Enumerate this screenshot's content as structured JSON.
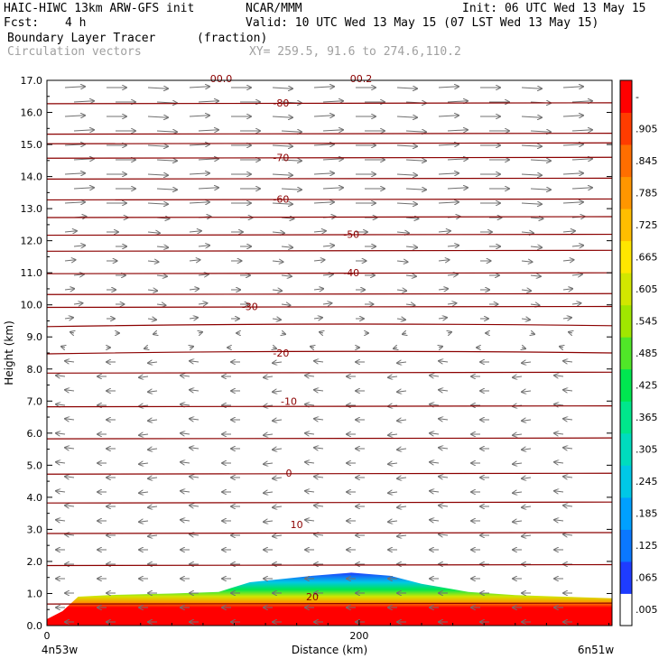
{
  "header": {
    "model": "HAIC-HIWC 13km ARW-GFS init",
    "org": "NCAR/MMM",
    "init": "Init: 06 UTC Wed 13 May 15",
    "fcst_label": "Fcst:",
    "fcst_value": "4 h",
    "valid": "Valid: 10 UTC Wed 13 May 15 (07 LST Wed 13 May 15)",
    "field": "Boundary Layer Tracer",
    "units": "(fraction)",
    "overlay": "Circulation vectors",
    "xy": "XY= 259.5, 91.6 to 274.6,110.2"
  },
  "chart_data": {
    "type": "heatmap",
    "ylabel": "Height (km)",
    "xlabel": "Distance (km)",
    "ylim": [
      0,
      17
    ],
    "yticks": [
      "0.0",
      "1.0",
      "2.0",
      "3.0",
      "4.0",
      "5.0",
      "6.0",
      "7.0",
      "8.0",
      "9.0",
      "10.0",
      "11.0",
      "12.0",
      "13.0",
      "14.0",
      "15.0",
      "16.0",
      "17.0"
    ],
    "xlim": [
      0,
      362
    ],
    "xticks": [
      {
        "value": 0,
        "label": "0"
      },
      {
        "value": 200,
        "label": "200"
      }
    ],
    "endpoints": {
      "left": "4n53w",
      "right": "6n51w"
    },
    "colorbar": {
      "labels": [
        ".005",
        ".065",
        ".125",
        ".185",
        ".245",
        ".305",
        ".365",
        ".425",
        ".485",
        ".545",
        ".605",
        ".665",
        ".725",
        ".785",
        ".845",
        ".905",
        "-"
      ],
      "colors": [
        "#ffffff",
        "#1e3cff",
        "#0a78ff",
        "#00a0ff",
        "#00c8e6",
        "#00dcbe",
        "#00e68c",
        "#00e650",
        "#50e628",
        "#a0e600",
        "#d2e600",
        "#ffe600",
        "#ffbe00",
        "#ff9600",
        "#ff6e00",
        "#ff3c00",
        "#ff0000"
      ]
    },
    "tracer_top_km": [
      [
        0,
        0.2
      ],
      [
        10,
        0.45
      ],
      [
        20,
        0.9
      ],
      [
        40,
        0.95
      ],
      [
        80,
        1.0
      ],
      [
        110,
        1.05
      ],
      [
        130,
        1.35
      ],
      [
        150,
        1.45
      ],
      [
        170,
        1.55
      ],
      [
        195,
        1.65
      ],
      [
        220,
        1.55
      ],
      [
        240,
        1.3
      ],
      [
        270,
        1.05
      ],
      [
        300,
        0.95
      ],
      [
        330,
        0.9
      ],
      [
        362,
        0.85
      ]
    ],
    "temperature_contours_C": [
      {
        "label": "0",
        "km": 4.75,
        "label_x": 155
      },
      {
        "label": "-10",
        "km": 7.0,
        "label_x": 155
      },
      {
        "label": "-20",
        "km": 8.5,
        "label_x": 150
      },
      {
        "label": "-30",
        "km": 9.95,
        "label_x": 130
      },
      {
        "label": "-40",
        "km": 11.0,
        "label_x": 195
      },
      {
        "label": "-50",
        "km": 12.2,
        "label_x": 195
      },
      {
        "label": "-60",
        "km": 13.3,
        "label_x": 150
      },
      {
        "label": "-70",
        "km": 14.6,
        "label_x": 150
      },
      {
        "label": "-80",
        "km": 16.3,
        "label_x": 150
      },
      {
        "label": "10",
        "km": 3.15,
        "label_x": 160
      },
      {
        "label": "20",
        "km": 0.9,
        "label_x": 170
      }
    ],
    "top_labels": [
      "00.0",
      "00.2"
    ]
  }
}
